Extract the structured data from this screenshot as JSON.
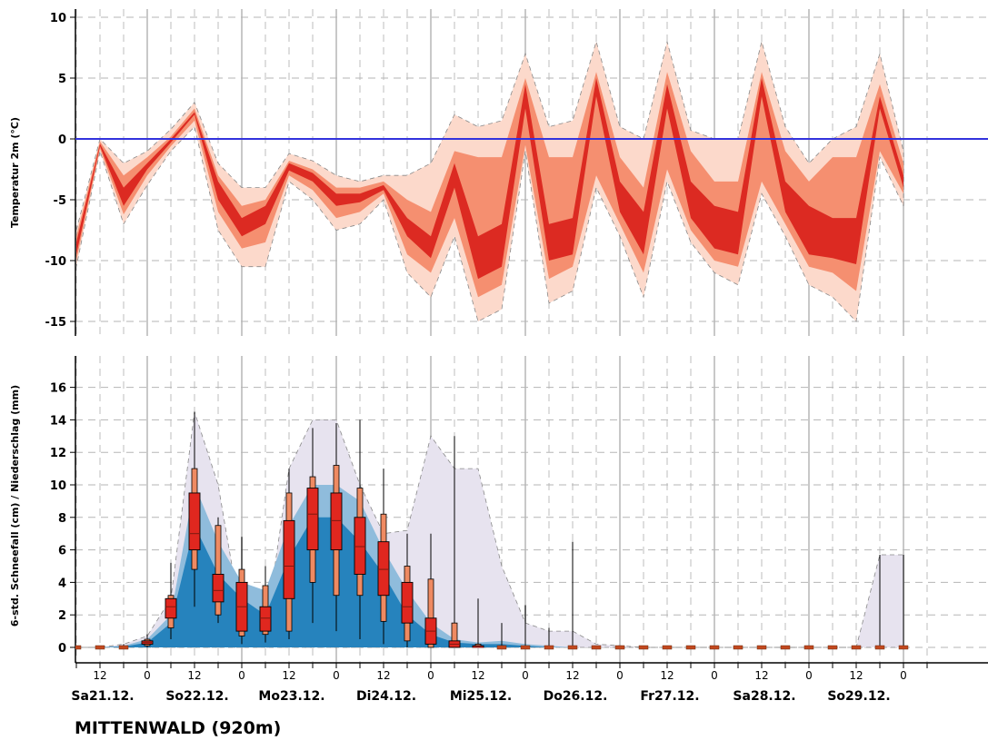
{
  "station": "MITTENWALD (920m)",
  "colors": {
    "temp_outer": "#fcd9cb",
    "temp_mid": "#f58f70",
    "temp_inner": "#dc2a22",
    "zero_line": "#3333dd",
    "precip_outer": "#e7e3ef",
    "precip_mid": "#8fbcdc",
    "precip_inner": "#2683bd",
    "box_fill": "#e0271f",
    "whisker_box": "#ef8a62"
  },
  "x_axis": {
    "hour_labels": [
      "12",
      "0",
      "12",
      "0",
      "12",
      "0",
      "12",
      "0",
      "12",
      "0",
      "12",
      "0",
      "12",
      "0",
      "12",
      "0",
      "12",
      "0"
    ],
    "day_labels": [
      "Sa21.12.",
      "So22.12.",
      "Mo23.12.",
      "Di24.12.",
      "Mi25.12.",
      "Do26.12.",
      "Fr27.12.",
      "Sa28.12.",
      "So29.12."
    ]
  },
  "chart_data": [
    {
      "type": "area",
      "ylabel": "Temperatur 2m (°C)",
      "ylim": [
        -16,
        10.5
      ],
      "yticks": [
        10,
        5,
        0,
        -5,
        -10,
        -15
      ],
      "grid": true,
      "x": [
        6,
        12,
        18,
        24,
        30,
        36,
        42,
        48,
        54,
        60,
        66,
        72,
        78,
        84,
        90,
        96,
        102,
        108,
        114,
        120,
        126,
        132,
        138,
        144,
        150,
        156,
        162,
        168,
        174,
        180,
        186,
        192,
        198,
        204,
        210,
        216
      ],
      "p10": [
        -10.5,
        -1.0,
        -7.0,
        -3.8,
        -1.0,
        1.0,
        -7.5,
        -10.5,
        -10.5,
        -3.5,
        -5.0,
        -7.5,
        -7.0,
        -5.0,
        -11.0,
        -13.0,
        -8.0,
        -15.0,
        -14.0,
        -1.0,
        -13.5,
        -12.5,
        -4.0,
        -8.0,
        -13.0,
        -3.5,
        -8.5,
        -11.0,
        -12.0,
        -4.5,
        -8.0,
        -12.0,
        -13.0,
        -15.0,
        -1.5,
        -5.5
      ],
      "p25": [
        -10.0,
        -0.8,
        -6.2,
        -3.0,
        -0.6,
        1.5,
        -6.0,
        -9.0,
        -8.5,
        -3.0,
        -4.2,
        -6.5,
        -6.0,
        -4.5,
        -9.5,
        -11.0,
        -6.5,
        -13.0,
        -12.0,
        -0.5,
        -11.5,
        -10.5,
        -3.0,
        -7.0,
        -11.0,
        -2.5,
        -7.5,
        -10.0,
        -10.5,
        -3.5,
        -7.0,
        -10.5,
        -11.0,
        -12.5,
        -1.0,
        -4.5
      ],
      "p40": [
        -9.5,
        -0.6,
        -5.5,
        -2.5,
        -0.3,
        2.0,
        -5.0,
        -8.0,
        -7.0,
        -2.6,
        -3.5,
        -5.5,
        -5.2,
        -4.2,
        -8.0,
        -9.8,
        -4.0,
        -11.5,
        -10.5,
        2.5,
        -10.0,
        -9.5,
        3.5,
        -6.0,
        -9.5,
        2.5,
        -6.5,
        -9.0,
        -9.5,
        3.5,
        -6.0,
        -9.5,
        -9.8,
        -10.3,
        2.5,
        -4.0
      ],
      "p60": [
        -8.5,
        -0.4,
        -4.0,
        -2.0,
        0.0,
        2.2,
        -3.5,
        -6.5,
        -5.5,
        -2.0,
        -2.8,
        -4.5,
        -4.5,
        -3.8,
        -6.5,
        -8.0,
        -2.0,
        -8.0,
        -7.0,
        4.5,
        -7.0,
        -6.5,
        5.0,
        -3.5,
        -6.0,
        4.5,
        -3.5,
        -5.5,
        -6.0,
        5.0,
        -3.5,
        -5.5,
        -6.5,
        -6.5,
        3.5,
        -3.0
      ],
      "p75": [
        -8.0,
        -0.2,
        -3.0,
        -1.5,
        0.2,
        2.5,
        -3.0,
        -5.5,
        -5.0,
        -1.8,
        -2.5,
        -4.0,
        -4.0,
        -3.5,
        -5.0,
        -6.0,
        -1.0,
        -1.5,
        -1.5,
        5.0,
        -1.5,
        -1.5,
        5.5,
        -1.5,
        -4.0,
        5.5,
        -1.0,
        -3.5,
        -3.5,
        5.5,
        -1.0,
        -3.5,
        -1.5,
        -1.5,
        4.5,
        -2.0
      ],
      "p90": [
        -7.5,
        0.0,
        -2.0,
        -1.0,
        0.8,
        3.0,
        -2.0,
        -4.0,
        -4.0,
        -1.2,
        -1.8,
        -3.0,
        -3.5,
        -3.0,
        -3.0,
        -2.0,
        2.0,
        1.0,
        1.5,
        7.0,
        1.0,
        1.5,
        8.0,
        1.0,
        0.0,
        8.0,
        0.7,
        0.0,
        0.0,
        8.0,
        1.0,
        -2.0,
        0.0,
        1.0,
        7.0,
        -1.0
      ]
    },
    {
      "type": "bar",
      "ylabel": "6-std. Schneefall (cm) / Niederschlag (mm)",
      "ylim": [
        -1,
        18
      ],
      "yticks": [
        0,
        2,
        4,
        6,
        8,
        10,
        12,
        14,
        16
      ],
      "grid": true,
      "x": [
        6,
        12,
        18,
        24,
        30,
        36,
        42,
        48,
        54,
        60,
        66,
        72,
        78,
        84,
        90,
        96,
        102,
        108,
        114,
        120,
        126,
        132,
        138,
        144,
        150,
        156,
        162,
        168,
        174,
        180,
        186,
        192,
        198,
        204,
        210,
        216
      ],
      "band_outer": [
        0,
        0,
        0.2,
        0.7,
        3.0,
        14.5,
        10.0,
        1.5,
        1.0,
        11.0,
        14.0,
        14.0,
        10.0,
        7.0,
        7.2,
        13.0,
        11.0,
        11.0,
        5.0,
        1.5,
        1.0,
        1.0,
        0.2,
        0.1,
        0,
        0,
        0,
        0,
        0,
        0,
        0,
        0,
        0,
        0,
        5.7,
        5.7
      ],
      "band_mid": [
        0,
        0,
        0.1,
        0.5,
        2.0,
        10.0,
        6.5,
        4.0,
        3.5,
        7.5,
        10.0,
        10.0,
        9.0,
        6.0,
        3.5,
        1.5,
        0.5,
        0.3,
        0.4,
        0.2,
        0.1,
        0,
        0,
        0,
        0,
        0,
        0,
        0,
        0,
        0,
        0,
        0,
        0,
        0,
        0,
        0
      ],
      "band_inner": [
        0,
        0,
        0.05,
        0.3,
        1.5,
        7.5,
        4.5,
        3.0,
        2.0,
        5.5,
        8.0,
        8.0,
        6.5,
        4.5,
        2.0,
        0.8,
        0.3,
        0.2,
        0.2,
        0.1,
        0,
        0,
        0,
        0,
        0,
        0,
        0,
        0,
        0,
        0,
        0,
        0,
        0,
        0,
        0,
        0
      ],
      "box_x": [
        6,
        12,
        18,
        24,
        30,
        36,
        42,
        48,
        54,
        60,
        66,
        72,
        78,
        84,
        90,
        96,
        102,
        108,
        114,
        120,
        126,
        132,
        138,
        144,
        150,
        156,
        162,
        168,
        174,
        180,
        186,
        192,
        198,
        204,
        210,
        216
      ],
      "q0": [
        0,
        0,
        0,
        0,
        0.5,
        2.5,
        1.5,
        0.2,
        0.3,
        0.5,
        1.5,
        1.0,
        0.5,
        0.2,
        0,
        0,
        0,
        0,
        0,
        0,
        0,
        0,
        0,
        0,
        0,
        0,
        0,
        0,
        0,
        0,
        0,
        0,
        0,
        0,
        0,
        0
      ],
      "q10": [
        0,
        0,
        0,
        0.1,
        1.2,
        4.8,
        2.0,
        0.7,
        0.8,
        1.0,
        4.0,
        3.2,
        3.2,
        1.6,
        0.4,
        0,
        0,
        0,
        0,
        0,
        0,
        0,
        0,
        0,
        0,
        0,
        0,
        0,
        0,
        0,
        0,
        0,
        0,
        0,
        0,
        0
      ],
      "q25": [
        0,
        0,
        0,
        0.2,
        1.8,
        6.0,
        2.8,
        1.0,
        1.0,
        3.0,
        6.0,
        6.0,
        4.5,
        3.2,
        1.5,
        0.2,
        0,
        0,
        0,
        0,
        0,
        0,
        0,
        0,
        0,
        0,
        0,
        0,
        0,
        0,
        0,
        0,
        0,
        0,
        0,
        0
      ],
      "q50": [
        0,
        0,
        0,
        0.3,
        2.5,
        7.0,
        3.5,
        2.5,
        1.8,
        5.0,
        8.2,
        7.8,
        6.2,
        4.8,
        2.5,
        1.0,
        0.2,
        0,
        0,
        0,
        0,
        0,
        0,
        0,
        0,
        0,
        0,
        0,
        0,
        0,
        0,
        0,
        0,
        0,
        0,
        0
      ],
      "q75": [
        0,
        0,
        0,
        0.4,
        3.0,
        9.5,
        4.5,
        4.0,
        2.5,
        7.8,
        9.8,
        9.5,
        8.0,
        6.5,
        4.0,
        1.8,
        0.4,
        0.1,
        0,
        0,
        0,
        0,
        0,
        0,
        0,
        0,
        0,
        0,
        0,
        0,
        0,
        0,
        0,
        0,
        0,
        0
      ],
      "q90": [
        0,
        0,
        0,
        0.5,
        3.2,
        11.0,
        7.5,
        4.8,
        3.8,
        9.5,
        10.5,
        11.2,
        9.8,
        8.2,
        5.0,
        4.2,
        1.5,
        0.2,
        0.1,
        0,
        0,
        0,
        0,
        0,
        0,
        0,
        0,
        0,
        0,
        0,
        0,
        0,
        0,
        0,
        0,
        0
      ],
      "q100": [
        0,
        0,
        0.2,
        0.8,
        5.2,
        14.5,
        8.0,
        6.8,
        5.0,
        11.0,
        13.5,
        13.8,
        14.0,
        11.0,
        7.0,
        7.0,
        13.0,
        3.0,
        1.5,
        2.6,
        1.2,
        6.5,
        0,
        0,
        0,
        0,
        0,
        0,
        0,
        0,
        0,
        0,
        0,
        0,
        5.7,
        5.7
      ]
    }
  ]
}
